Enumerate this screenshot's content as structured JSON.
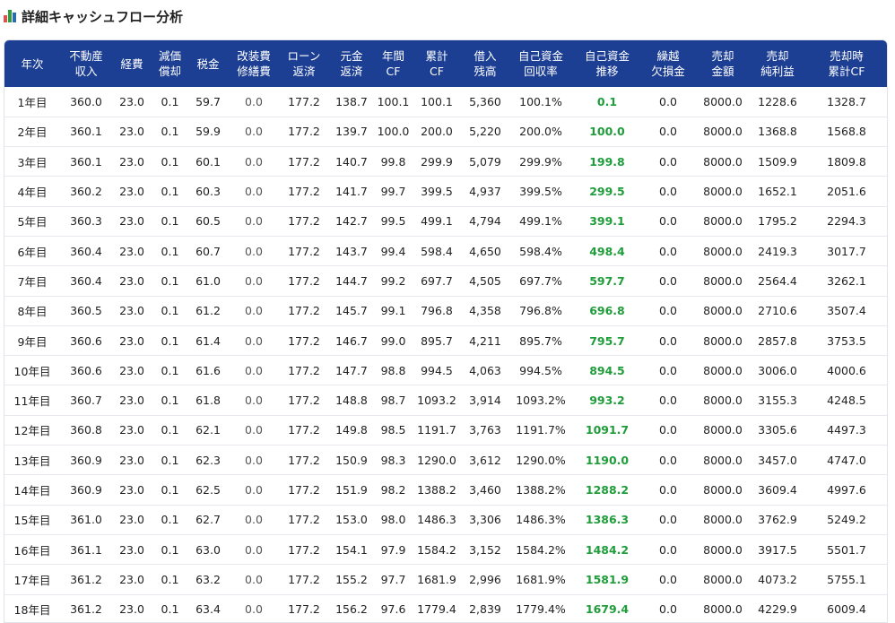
{
  "page": {
    "title": "詳細キャッシュフロー分析"
  },
  "colors": {
    "header_bg": "#1c3f94",
    "positive": "#1f9d3a"
  },
  "columns": [
    "年次",
    "不動産\n収入",
    "経費",
    "減価\n償却",
    "税金",
    "改装費\n修繕費",
    "ローン\n返済",
    "元金\n返済",
    "年間\nCF",
    "累計\nCF",
    "借入\n残高",
    "自己資金\n回収率",
    "自己資金\n推移",
    "繰越\n欠損金",
    "売却\n金額",
    "売却\n純利益",
    "売却時\n累計CF"
  ],
  "rows": [
    [
      "1年目",
      "360.0",
      "23.0",
      "0.1",
      "59.7",
      "0.0",
      "177.2",
      "138.7",
      "100.1",
      "100.1",
      "5,360",
      "100.1%",
      "0.1",
      "0.0",
      "8000.0",
      "1228.6",
      "1328.7"
    ],
    [
      "2年目",
      "360.1",
      "23.0",
      "0.1",
      "59.9",
      "0.0",
      "177.2",
      "139.7",
      "100.0",
      "200.0",
      "5,220",
      "200.0%",
      "100.0",
      "0.0",
      "8000.0",
      "1368.8",
      "1568.8"
    ],
    [
      "3年目",
      "360.1",
      "23.0",
      "0.1",
      "60.1",
      "0.0",
      "177.2",
      "140.7",
      "99.8",
      "299.9",
      "5,079",
      "299.9%",
      "199.8",
      "0.0",
      "8000.0",
      "1509.9",
      "1809.8"
    ],
    [
      "4年目",
      "360.2",
      "23.0",
      "0.1",
      "60.3",
      "0.0",
      "177.2",
      "141.7",
      "99.7",
      "399.5",
      "4,937",
      "399.5%",
      "299.5",
      "0.0",
      "8000.0",
      "1652.1",
      "2051.6"
    ],
    [
      "5年目",
      "360.3",
      "23.0",
      "0.1",
      "60.5",
      "0.0",
      "177.2",
      "142.7",
      "99.5",
      "499.1",
      "4,794",
      "499.1%",
      "399.1",
      "0.0",
      "8000.0",
      "1795.2",
      "2294.3"
    ],
    [
      "6年目",
      "360.4",
      "23.0",
      "0.1",
      "60.7",
      "0.0",
      "177.2",
      "143.7",
      "99.4",
      "598.4",
      "4,650",
      "598.4%",
      "498.4",
      "0.0",
      "8000.0",
      "2419.3",
      "3017.7"
    ],
    [
      "7年目",
      "360.4",
      "23.0",
      "0.1",
      "61.0",
      "0.0",
      "177.2",
      "144.7",
      "99.2",
      "697.7",
      "4,505",
      "697.7%",
      "597.7",
      "0.0",
      "8000.0",
      "2564.4",
      "3262.1"
    ],
    [
      "8年目",
      "360.5",
      "23.0",
      "0.1",
      "61.2",
      "0.0",
      "177.2",
      "145.7",
      "99.1",
      "796.8",
      "4,358",
      "796.8%",
      "696.8",
      "0.0",
      "8000.0",
      "2710.6",
      "3507.4"
    ],
    [
      "9年目",
      "360.6",
      "23.0",
      "0.1",
      "61.4",
      "0.0",
      "177.2",
      "146.7",
      "99.0",
      "895.7",
      "4,211",
      "895.7%",
      "795.7",
      "0.0",
      "8000.0",
      "2857.8",
      "3753.5"
    ],
    [
      "10年目",
      "360.6",
      "23.0",
      "0.1",
      "61.6",
      "0.0",
      "177.2",
      "147.7",
      "98.8",
      "994.5",
      "4,063",
      "994.5%",
      "894.5",
      "0.0",
      "8000.0",
      "3006.0",
      "4000.6"
    ],
    [
      "11年目",
      "360.7",
      "23.0",
      "0.1",
      "61.8",
      "0.0",
      "177.2",
      "148.8",
      "98.7",
      "1093.2",
      "3,914",
      "1093.2%",
      "993.2",
      "0.0",
      "8000.0",
      "3155.3",
      "4248.5"
    ],
    [
      "12年目",
      "360.8",
      "23.0",
      "0.1",
      "62.1",
      "0.0",
      "177.2",
      "149.8",
      "98.5",
      "1191.7",
      "3,763",
      "1191.7%",
      "1091.7",
      "0.0",
      "8000.0",
      "3305.6",
      "4497.3"
    ],
    [
      "13年目",
      "360.9",
      "23.0",
      "0.1",
      "62.3",
      "0.0",
      "177.2",
      "150.9",
      "98.3",
      "1290.0",
      "3,612",
      "1290.0%",
      "1190.0",
      "0.0",
      "8000.0",
      "3457.0",
      "4747.0"
    ],
    [
      "14年目",
      "360.9",
      "23.0",
      "0.1",
      "62.5",
      "0.0",
      "177.2",
      "151.9",
      "98.2",
      "1388.2",
      "3,460",
      "1388.2%",
      "1288.2",
      "0.0",
      "8000.0",
      "3609.4",
      "4997.6"
    ],
    [
      "15年目",
      "361.0",
      "23.0",
      "0.1",
      "62.7",
      "0.0",
      "177.2",
      "153.0",
      "98.0",
      "1486.3",
      "3,306",
      "1486.3%",
      "1386.3",
      "0.0",
      "8000.0",
      "3762.9",
      "5249.2"
    ],
    [
      "16年目",
      "361.1",
      "23.0",
      "0.1",
      "63.0",
      "0.0",
      "177.2",
      "154.1",
      "97.9",
      "1584.2",
      "3,152",
      "1584.2%",
      "1484.2",
      "0.0",
      "8000.0",
      "3917.5",
      "5501.7"
    ],
    [
      "17年目",
      "361.2",
      "23.0",
      "0.1",
      "63.2",
      "0.0",
      "177.2",
      "155.2",
      "97.7",
      "1681.9",
      "2,996",
      "1681.9%",
      "1581.9",
      "0.0",
      "8000.0",
      "4073.2",
      "5755.1"
    ],
    [
      "18年目",
      "361.2",
      "23.0",
      "0.1",
      "63.4",
      "0.0",
      "177.2",
      "156.2",
      "97.6",
      "1779.4",
      "2,839",
      "1779.4%",
      "1679.4",
      "0.0",
      "8000.0",
      "4229.9",
      "6009.4"
    ]
  ]
}
